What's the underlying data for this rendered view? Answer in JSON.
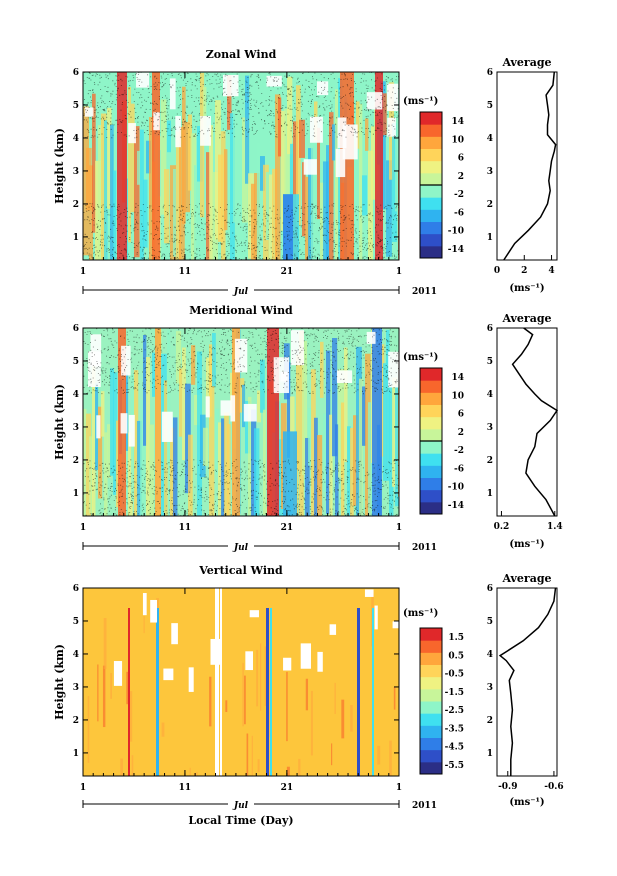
{
  "colors": {
    "scale": [
      "#2b2e86",
      "#2e4fc8",
      "#2f7ee8",
      "#2fb3f0",
      "#3fe0f0",
      "#8ef5c8",
      "#c8f59a",
      "#eff282",
      "#ffd45a",
      "#ffa63c",
      "#f8662c",
      "#e0282a"
    ],
    "vertical_background": "#fdc63c"
  },
  "chart_data": [
    {
      "type": "heatmap",
      "name": "zonal",
      "title": "Zonal Wind",
      "ylabel": "Height (km)",
      "ylim": [
        0.3,
        6
      ],
      "yticks": [
        "1",
        "2",
        "3",
        "4",
        "5",
        "6"
      ],
      "xticks": [
        "1",
        "11",
        "21",
        "1"
      ],
      "xlim_days": [
        1,
        32
      ],
      "month_label": "Jul",
      "year_label": "2011",
      "colorbar": {
        "unit": "(ms⁻¹)",
        "labels": [
          "14",
          "10",
          "6",
          "2",
          "-2",
          "-6",
          "-10",
          "-14"
        ],
        "range": [
          -16,
          16
        ]
      },
      "profile": {
        "title": "Average",
        "xlabel": "(ms⁻¹)",
        "xticks": [
          "0",
          "2",
          "4"
        ],
        "xlim": [
          0,
          4.4
        ],
        "values": [
          0.5,
          1.3,
          2.3,
          3.2,
          3.7,
          3.9,
          3.8,
          3.9,
          4.0,
          4.2,
          4.3,
          3.7,
          3.7,
          3.8,
          3.7,
          3.6,
          4.1,
          4.2
        ],
        "heights": [
          0.3,
          0.8,
          1.2,
          1.6,
          2.0,
          2.4,
          2.7,
          3.0,
          3.3,
          3.6,
          3.8,
          4.1,
          4.4,
          4.7,
          5.0,
          5.3,
          5.6,
          6.0
        ]
      }
    },
    {
      "type": "heatmap",
      "name": "meridional",
      "title": "Meridional Wind",
      "ylabel": "Height (km)",
      "ylim": [
        0.3,
        6
      ],
      "yticks": [
        "1",
        "2",
        "3",
        "4",
        "5",
        "6"
      ],
      "xticks": [
        "1",
        "11",
        "21",
        "1"
      ],
      "xlim_days": [
        1,
        32
      ],
      "month_label": "Jul",
      "year_label": "2011",
      "colorbar": {
        "unit": "(ms⁻¹)",
        "labels": [
          "14",
          "10",
          "6",
          "2",
          "-2",
          "-6",
          "-10",
          "-14"
        ],
        "range": [
          -16,
          16
        ]
      },
      "profile": {
        "title": "Average",
        "xlabel": "(ms⁻¹)",
        "xticks": [
          "0.2",
          "1.4"
        ],
        "xlim": [
          0.1,
          1.45
        ],
        "values": [
          1.4,
          1.2,
          0.95,
          0.75,
          0.8,
          0.95,
          1.0,
          1.3,
          1.45,
          1.1,
          0.95,
          0.75,
          0.6,
          0.45,
          0.65,
          0.8,
          0.9,
          0.7
        ],
        "heights": [
          0.3,
          0.8,
          1.2,
          1.6,
          2.0,
          2.4,
          2.8,
          3.2,
          3.5,
          3.8,
          4.0,
          4.3,
          4.6,
          4.9,
          5.2,
          5.5,
          5.8,
          6.0
        ]
      }
    },
    {
      "type": "heatmap",
      "name": "vertical",
      "title": "Vertical Wind",
      "ylabel": "Height (km)",
      "xlabel": "Local Time (Day)",
      "ylim": [
        0.3,
        6
      ],
      "yticks": [
        "1",
        "2",
        "3",
        "4",
        "5",
        "6"
      ],
      "xticks": [
        "1",
        "11",
        "21",
        "1"
      ],
      "xlim_days": [
        1,
        32
      ],
      "month_label": "Jul",
      "year_label": "2011",
      "colorbar": {
        "unit": "(ms⁻¹)",
        "labels": [
          "1.5",
          "0.5",
          "-0.5",
          "-1.5",
          "-2.5",
          "-3.5",
          "-4.5",
          "-5.5"
        ],
        "range": [
          -6,
          2
        ]
      },
      "profile": {
        "title": "Average",
        "xlabel": "(ms⁻¹)",
        "xticks": [
          "-0.9",
          "-0.6"
        ],
        "xlim": [
          -0.97,
          -0.58
        ],
        "values": [
          -0.88,
          -0.88,
          -0.87,
          -0.88,
          -0.87,
          -0.88,
          -0.89,
          -0.86,
          -0.91,
          -0.95,
          -0.9,
          -0.8,
          -0.7,
          -0.64,
          -0.6,
          -0.59
        ],
        "heights": [
          0.3,
          0.8,
          1.3,
          1.8,
          2.3,
          2.8,
          3.2,
          3.5,
          3.8,
          3.95,
          4.1,
          4.4,
          4.8,
          5.2,
          5.6,
          6.0
        ]
      }
    }
  ]
}
